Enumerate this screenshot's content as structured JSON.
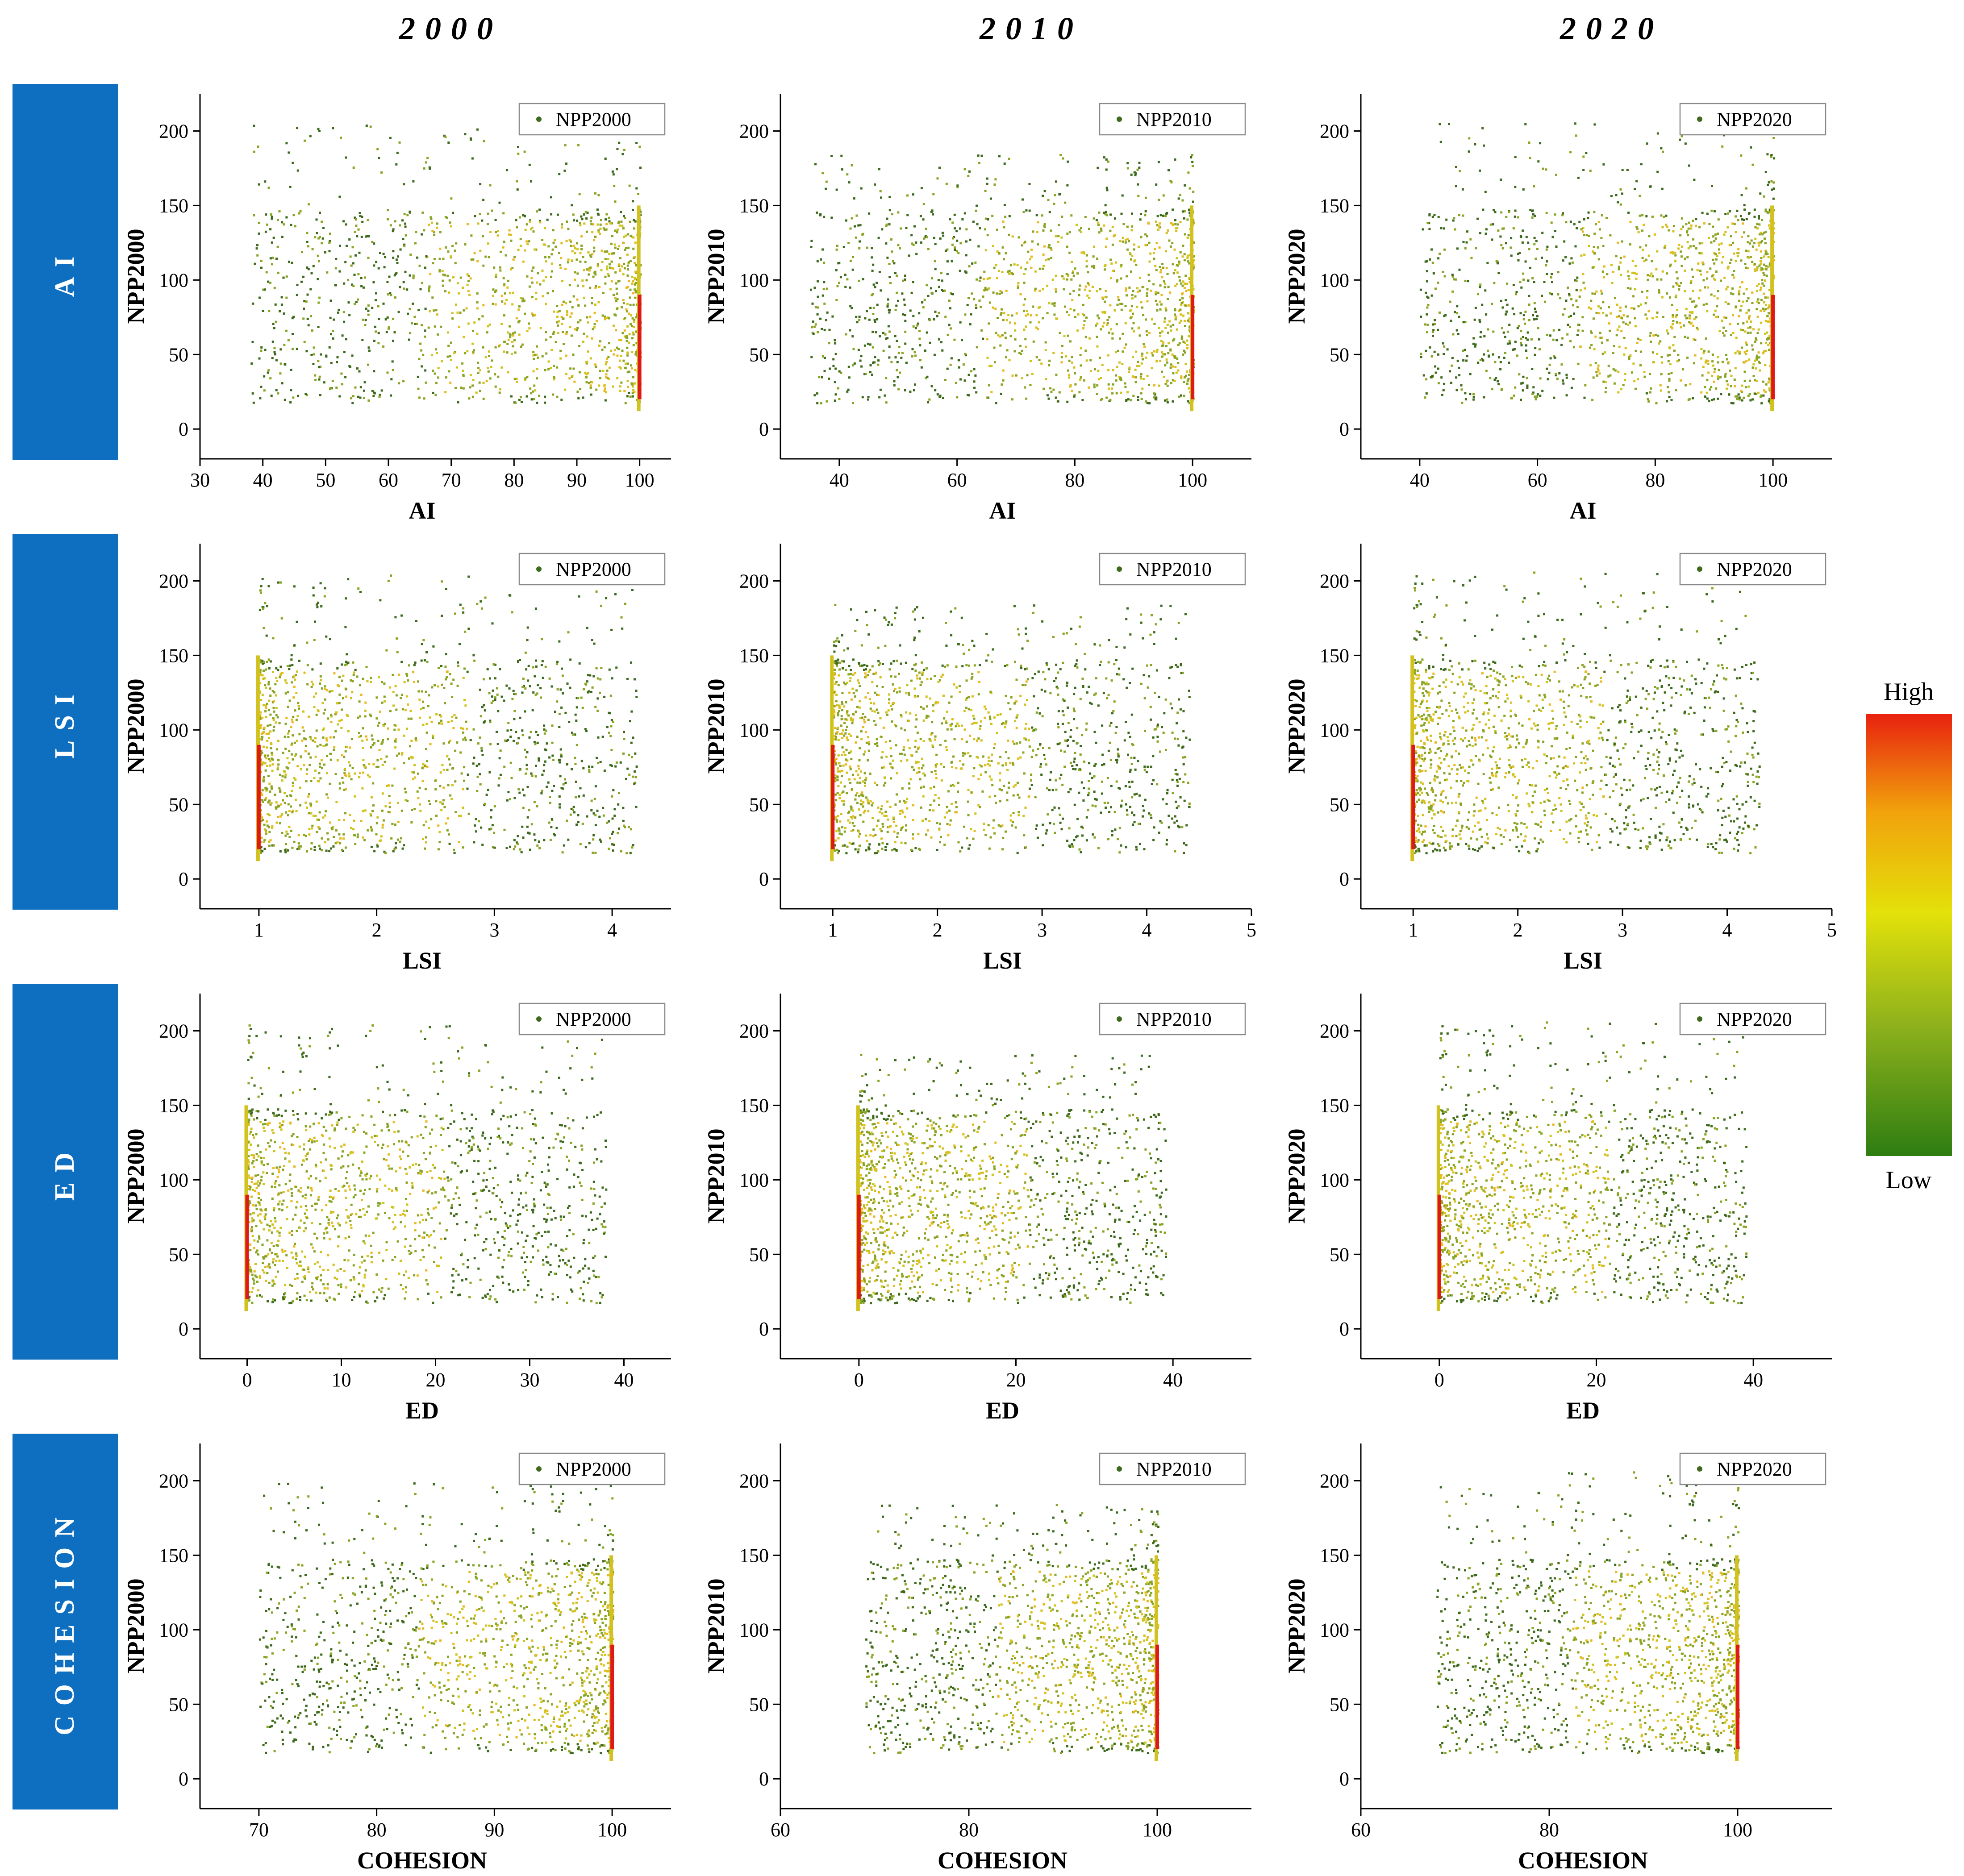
{
  "column_titles": [
    "2000",
    "2010",
    "2020"
  ],
  "row_labels": [
    "AI",
    "LSI",
    "ED",
    "COHESION"
  ],
  "colorbar": {
    "high_label": "High",
    "low_label": "Low",
    "colors": [
      "#2e7d12",
      "#8fb21c",
      "#e3e10a",
      "#f1a20c",
      "#e8220f"
    ]
  },
  "point_colors": {
    "low": "#3d6a1c",
    "mid": "#8aa423",
    "high": "#d2c21f",
    "top": "#e9b920",
    "peak": "#e01818"
  },
  "row_banner_color": "#0e6ec0",
  "chart_data": [
    {
      "type": "scatter",
      "row": "AI",
      "year": "2000",
      "series_name": "NPP2000",
      "xlabel": "AI",
      "ylabel": "NPP2000",
      "xlim": [
        30,
        105
      ],
      "ylim": [
        -20,
        225
      ],
      "xticks": [
        30,
        40,
        50,
        60,
        70,
        80,
        90,
        100
      ],
      "yticks": [
        0,
        50,
        100,
        150,
        200
      ],
      "x_range": [
        38,
        100
      ],
      "y_range": [
        8,
        205
      ]
    },
    {
      "type": "scatter",
      "row": "AI",
      "year": "2010",
      "series_name": "NPP2010",
      "xlabel": "AI",
      "ylabel": "NPP2010",
      "xlim": [
        30,
        110
      ],
      "ylim": [
        -20,
        225
      ],
      "xticks": [
        40,
        60,
        80,
        100
      ],
      "yticks": [
        0,
        50,
        100,
        150,
        200
      ],
      "x_range": [
        35,
        100
      ],
      "y_range": [
        10,
        185
      ]
    },
    {
      "type": "scatter",
      "row": "AI",
      "year": "2020",
      "series_name": "NPP2020",
      "xlabel": "AI",
      "ylabel": "NPP2020",
      "xlim": [
        30,
        110
      ],
      "ylim": [
        -20,
        225
      ],
      "xticks": [
        40,
        60,
        80,
        100
      ],
      "yticks": [
        0,
        50,
        100,
        150,
        200
      ],
      "x_range": [
        40,
        100
      ],
      "y_range": [
        8,
        207
      ]
    },
    {
      "type": "scatter",
      "row": "LSI",
      "year": "2000",
      "series_name": "NPP2000",
      "xlabel": "LSI",
      "ylabel": "NPP2000",
      "xlim": [
        0.5,
        4.5
      ],
      "ylim": [
        -20,
        225
      ],
      "xticks": [
        1,
        2,
        3,
        4
      ],
      "yticks": [
        0,
        50,
        100,
        150,
        200
      ],
      "x_range": [
        1,
        4.2
      ],
      "y_range": [
        10,
        205
      ]
    },
    {
      "type": "scatter",
      "row": "LSI",
      "year": "2010",
      "series_name": "NPP2010",
      "xlabel": "LSI",
      "ylabel": "NPP2010",
      "xlim": [
        0.5,
        5
      ],
      "ylim": [
        -20,
        225
      ],
      "xticks": [
        1,
        2,
        3,
        4,
        5
      ],
      "yticks": [
        0,
        50,
        100,
        150,
        200
      ],
      "x_range": [
        1,
        4.4
      ],
      "y_range": [
        10,
        185
      ]
    },
    {
      "type": "scatter",
      "row": "LSI",
      "year": "2020",
      "series_name": "NPP2020",
      "xlabel": "LSI",
      "ylabel": "NPP2020",
      "xlim": [
        0.5,
        5
      ],
      "ylim": [
        -20,
        225
      ],
      "xticks": [
        1,
        2,
        3,
        4,
        5
      ],
      "yticks": [
        0,
        50,
        100,
        150,
        200
      ],
      "x_range": [
        1,
        4.3
      ],
      "y_range": [
        8,
        207
      ]
    },
    {
      "type": "scatter",
      "row": "ED",
      "year": "2000",
      "series_name": "NPP2000",
      "xlabel": "ED",
      "ylabel": "NPP2000",
      "xlim": [
        -5,
        45
      ],
      "ylim": [
        -20,
        225
      ],
      "xticks": [
        0,
        10,
        20,
        30,
        40
      ],
      "yticks": [
        0,
        50,
        100,
        150,
        200
      ],
      "x_range": [
        0,
        38
      ],
      "y_range": [
        8,
        205
      ]
    },
    {
      "type": "scatter",
      "row": "ED",
      "year": "2010",
      "series_name": "NPP2010",
      "xlabel": "ED",
      "ylabel": "NPP2010",
      "xlim": [
        -10,
        50
      ],
      "ylim": [
        -20,
        225
      ],
      "xticks": [
        0,
        20,
        40
      ],
      "yticks": [
        0,
        50,
        100,
        150,
        200
      ],
      "x_range": [
        0,
        39
      ],
      "y_range": [
        10,
        185
      ]
    },
    {
      "type": "scatter",
      "row": "ED",
      "year": "2020",
      "series_name": "NPP2020",
      "xlabel": "ED",
      "ylabel": "NPP2020",
      "xlim": [
        -10,
        50
      ],
      "ylim": [
        -20,
        225
      ],
      "xticks": [
        0,
        20,
        40
      ],
      "yticks": [
        0,
        50,
        100,
        150,
        200
      ],
      "x_range": [
        0,
        39
      ],
      "y_range": [
        8,
        207
      ]
    },
    {
      "type": "scatter",
      "row": "COHESION",
      "year": "2000",
      "series_name": "NPP2000",
      "xlabel": "COHESION",
      "ylabel": "NPP2000",
      "xlim": [
        65,
        105
      ],
      "ylim": [
        -20,
        225
      ],
      "xticks": [
        70,
        80,
        90,
        100
      ],
      "yticks": [
        0,
        50,
        100,
        150,
        200
      ],
      "x_range": [
        70,
        100
      ],
      "y_range": [
        8,
        200
      ]
    },
    {
      "type": "scatter",
      "row": "COHESION",
      "year": "2010",
      "series_name": "NPP2010",
      "xlabel": "COHESION",
      "ylabel": "NPP2010",
      "xlim": [
        60,
        110
      ],
      "ylim": [
        -20,
        225
      ],
      "xticks": [
        60,
        80,
        100
      ],
      "yticks": [
        0,
        50,
        100,
        150,
        200
      ],
      "x_range": [
        69,
        100
      ],
      "y_range": [
        10,
        185
      ]
    },
    {
      "type": "scatter",
      "row": "COHESION",
      "year": "2020",
      "series_name": "NPP2020",
      "xlabel": "COHESION",
      "ylabel": "NPP2020",
      "xlim": [
        60,
        110
      ],
      "ylim": [
        -20,
        225
      ],
      "xticks": [
        60,
        80,
        100
      ],
      "yticks": [
        0,
        50,
        100,
        150,
        200
      ],
      "x_range": [
        68,
        100
      ],
      "y_range": [
        8,
        207
      ]
    }
  ]
}
